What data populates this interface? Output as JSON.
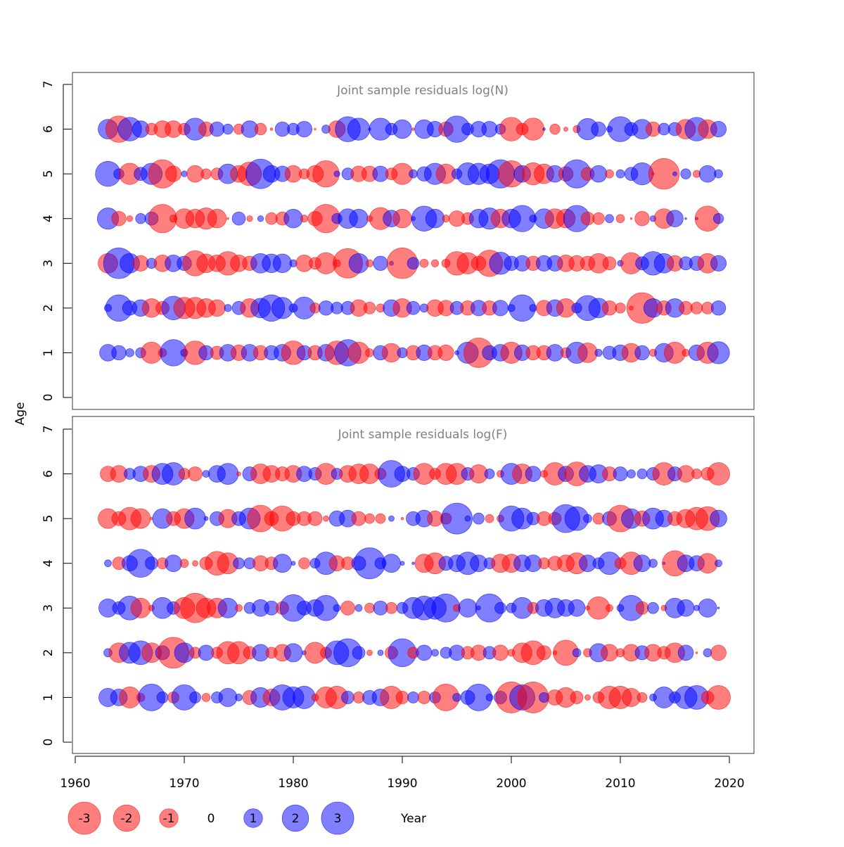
{
  "chart_data": [
    {
      "type": "scatter",
      "subtype": "bubble",
      "title": "Joint sample residuals log(N)",
      "xlabel": "Year",
      "ylabel": "Age",
      "xlim": [
        1960,
        2020
      ],
      "ylim": [
        0,
        7
      ],
      "x_ticks": [
        "1960",
        "1970",
        "1980",
        "1990",
        "2000",
        "2010",
        "2020"
      ],
      "y_ticks": [
        "0",
        "1",
        "2",
        "3",
        "4",
        "5",
        "6",
        "7"
      ],
      "years": [
        1963,
        2019
      ],
      "ages": [
        1,
        2,
        3,
        4,
        5,
        6
      ],
      "residuals": {
        "6": [
          1.1,
          -2,
          1.6,
          0.8,
          -0.4,
          -0.8,
          -0.8,
          -0.4,
          1.4,
          -0.6,
          0.6,
          0.3,
          -0.3,
          0.8,
          -0.4,
          -0.02,
          0.6,
          0.4,
          0.7,
          -0.01,
          0.2,
          -0.8,
          1.8,
          1.4,
          0.02,
          1.4,
          0.4,
          1,
          -0.02,
          1,
          0.7,
          -0.6,
          2,
          0.4,
          0.7,
          0.7,
          0.3,
          -1.6,
          -0.4,
          -1.4,
          0.02,
          -0.3,
          -0.05,
          -0.15,
          1.3,
          0.6,
          0.1,
          1.8,
          0.5,
          1.1,
          -0.6,
          0.4,
          0.5,
          -1.1,
          1.6,
          -1,
          0.7
        ],
        "5": [
          1.8,
          0.3,
          -1.3,
          0.5,
          1.3,
          -2.3,
          -0.7,
          0.1,
          -0.8,
          -0.3,
          -0.4,
          1.1,
          -0.8,
          -1.6,
          2.5,
          0.8,
          0.7,
          -0.8,
          -0.3,
          -0.8,
          -2,
          0.1,
          0.4,
          -0.7,
          -0.7,
          0.7,
          -0.4,
          -1.3,
          0.2,
          0.6,
          1.3,
          -1.1,
          0.3,
          1.4,
          1.3,
          1.1,
          2.3,
          -2,
          0.8,
          -1.4,
          -1.1,
          0.8,
          -0.6,
          2.3,
          -0.5,
          0.8,
          -0.2,
          0.2,
          0.5,
          1.4,
          -0.02,
          -2.7,
          0.05,
          0.3,
          -0.15,
          0.8,
          0.2
        ],
        "4": [
          1.3,
          -0.6,
          -0.1,
          0.3,
          0.5,
          -2.3,
          -0.15,
          -1.1,
          -1,
          -1.3,
          -1,
          -0.01,
          0.5,
          -0.1,
          0.1,
          -0.4,
          -0.5,
          1,
          -0.15,
          -0.6,
          -2.3,
          0.3,
          1.1,
          1,
          -0.1,
          -1.4,
          0.8,
          -1,
          0.05,
          1.8,
          1,
          -0.15,
          -0.7,
          -0.4,
          1,
          1.3,
          -1,
          1,
          2,
          0.15,
          1.1,
          -1.1,
          -1,
          2,
          -0.5,
          -0.4,
          0.2,
          -0.2,
          -0.01,
          -0.6,
          0.1,
          -1.1,
          0.8,
          0.01,
          0.02,
          -1.8,
          0.3
        ],
        "3": [
          -1.1,
          2.7,
          1.1,
          -0.7,
          0.3,
          -0.8,
          0.8,
          0.6,
          -1.8,
          -1,
          -0.8,
          -1.6,
          -0.8,
          -0.6,
          1.1,
          1,
          1,
          0.15,
          -0.8,
          -0.4,
          -1.3,
          -0.15,
          -2.5,
          1.1,
          -0.15,
          0.6,
          0.05,
          -2.7,
          0.4,
          -0.2,
          -0.15,
          -0.2,
          -1.6,
          -1.3,
          -0.6,
          -2,
          1.4,
          0.6,
          0.7,
          -0.6,
          0.7,
          0.7,
          -0.8,
          -0.7,
          -0.6,
          -1.1,
          -0.5,
          0.1,
          -1.3,
          0.5,
          1.6,
          1.1,
          -0.7,
          0.5,
          0.6,
          -1.1,
          0.7
        ],
        "2": [
          0.15,
          2,
          0.6,
          0.8,
          -1,
          -0.5,
          1.6,
          -1.3,
          -1.3,
          -1,
          -0.8,
          0.15,
          0.5,
          -1,
          1.1,
          2,
          1.3,
          0.2,
          1.4,
          -0.3,
          0.6,
          0.4,
          0.5,
          -0.8,
          -0.4,
          -0.2,
          0.8,
          -1,
          0.5,
          0.2,
          -0.8,
          -0.7,
          0.5,
          -0.6,
          0.7,
          -0.6,
          0.7,
          0.15,
          2,
          0.15,
          -0.7,
          0.8,
          -1,
          0.3,
          1.8,
          1.1,
          -0.6,
          -0.3,
          -0.05,
          -2.7,
          1,
          -0.6,
          1,
          -0.5,
          -0.4,
          -0.4,
          0.6
        ],
        "1": [
          0.8,
          0.6,
          0.2,
          0.3,
          -1.3,
          -0.2,
          2,
          0.15,
          -1.6,
          0.6,
          -0.5,
          0.8,
          -0.7,
          0.8,
          -0.6,
          0.6,
          0.8,
          -1.6,
          0.6,
          -0.6,
          0.8,
          -1.6,
          2,
          -1.3,
          -0.2,
          0.6,
          -1,
          0.3,
          -0.6,
          0.7,
          -0.6,
          -0.7,
          0.05,
          1.3,
          -2.5,
          0.6,
          0.8,
          -1.3,
          0.7,
          -0.6,
          -0.6,
          0.8,
          -0.3,
          1.3,
          -1.1,
          0.15,
          0.5,
          0.7,
          -1,
          0.6,
          -0.15,
          1,
          -1.3,
          -0.15,
          0.7,
          -1.3,
          1.4
        ]
      }
    },
    {
      "type": "scatter",
      "subtype": "bubble",
      "title": "Joint sample residuals log(F)",
      "xlabel": "Year",
      "ylabel": "Age",
      "xlim": [
        1960,
        2020
      ],
      "ylim": [
        0,
        7
      ],
      "x_ticks": [
        "1960",
        "1970",
        "1980",
        "1990",
        "2000",
        "2010",
        "2020"
      ],
      "y_ticks": [
        "0",
        "1",
        "2",
        "3",
        "4",
        "5",
        "6",
        "7"
      ],
      "years": [
        1963,
        2019
      ],
      "ages": [
        1,
        2,
        3,
        4,
        5,
        6
      ],
      "residuals": {
        "6": [
          -0.68,
          -0.81,
          0.36,
          0.68,
          -0.81,
          1.27,
          1.45,
          -0.36,
          -0.57,
          0.14,
          0.81,
          1.27,
          -0.05,
          0.57,
          -1.11,
          -0.81,
          -0.57,
          -0.81,
          0.68,
          0.46,
          -1.27,
          0.36,
          -0.81,
          -1.11,
          -1.11,
          -0.36,
          2.04,
          0.68,
          0.46,
          -1.27,
          -0.36,
          -1.27,
          -1.27,
          0.46,
          -0.96,
          0.28,
          -0.14,
          1.27,
          -1.11,
          0.68,
          -0.14,
          -1.45,
          0.68,
          -1.63,
          0.81,
          0.96,
          -0.57,
          0.57,
          0.2,
          0.28,
          0.46,
          -1.45,
          0.57,
          -0.81,
          -0.28,
          -0.46,
          -1.45
        ],
        "5": [
          -1.11,
          -0.57,
          -1.45,
          -1.11,
          -0.02,
          1.11,
          -0.57,
          -1.11,
          1.27,
          0.05,
          0.57,
          -0.96,
          0.57,
          1.27,
          -2.04,
          -0.57,
          -1.83,
          -0.57,
          -0.57,
          -0.57,
          -0.09,
          0.68,
          0.81,
          -0.57,
          -0.28,
          -0.28,
          0.09,
          -0.02,
          0.57,
          0.81,
          -0.68,
          -0.36,
          2.74,
          0.09,
          0.36,
          -0.2,
          -0.14,
          1.83,
          1.27,
          0.46,
          -0.57,
          -0.46,
          2.26,
          1.63,
          0.2,
          -0.36,
          0.57,
          -2.04,
          1.11,
          -0.68,
          1.27,
          0.81,
          -0.57,
          -0.96,
          -1.45,
          -1.63,
          0.81
        ],
        "4": [
          0.14,
          -0.46,
          0.68,
          2.26,
          0.46,
          -0.36,
          0.81,
          -0.2,
          -0.09,
          -0.46,
          -1.63,
          -1.27,
          0.36,
          0.36,
          -0.68,
          -0.46,
          0.96,
          0.05,
          -0.36,
          0.28,
          1.45,
          -0.68,
          -0.46,
          0.57,
          2.74,
          0.36,
          0.96,
          0.05,
          0.02,
          -0.96,
          -1.27,
          0.57,
          0.81,
          1.45,
          0.81,
          0.36,
          -0.96,
          -0.96,
          0.81,
          0.81,
          -0.36,
          -0.57,
          -0.81,
          -1.27,
          0.81,
          0.36,
          1.45,
          -0.36,
          -1.45,
          0.81,
          0.2,
          0.02,
          -1.83,
          0.81,
          0.68,
          -1.11,
          0.14
        ],
        "3": [
          0.96,
          0.46,
          1.63,
          -1.11,
          -0.09,
          1.27,
          0.46,
          -1.27,
          -2.49,
          -1.11,
          -1.11,
          1.11,
          -0.14,
          0.36,
          0.81,
          0.57,
          -0.46,
          2.04,
          0.57,
          0.81,
          1.83,
          0.14,
          -0.57,
          0.14,
          -0.28,
          0.57,
          -0.36,
          0.36,
          1.27,
          1.63,
          1.45,
          2.26,
          -0.14,
          0.96,
          0.05,
          2.26,
          0.36,
          0.28,
          1.27,
          -0.36,
          0.81,
          1.11,
          0.81,
          0.81,
          -0.05,
          -1.45,
          -0.14,
          0.14,
          1.83,
          -0.46,
          0.36,
          -0.09,
          1.11,
          0.81,
          0.09,
          0.96,
          0.01
        ],
        "2": [
          0.2,
          -1.11,
          1.27,
          1.63,
          -1.11,
          0.57,
          -2.74,
          1.11,
          -0.36,
          0.68,
          -0.36,
          -1.45,
          -1.45,
          -0.46,
          0.81,
          -0.36,
          -0.81,
          0.96,
          0.05,
          -1.27,
          -0.36,
          1.63,
          2.26,
          0.46,
          -0.09,
          0.09,
          -0.46,
          2.26,
          -0.36,
          0.68,
          0.14,
          0.36,
          0.68,
          -0.46,
          -0.68,
          0.46,
          -0.68,
          -0.14,
          -1.11,
          -1.63,
          -0.57,
          -0.05,
          -1.83,
          0.2,
          -0.2,
          0.96,
          -0.81,
          -0.2,
          -0.81,
          0.57,
          -0.81,
          -0.46,
          -1.11,
          0.68,
          -0.01,
          0.2,
          -0.68
        ],
        "1": [
          0.96,
          0.81,
          -1.27,
          -0.2,
          2.04,
          0.36,
          -0.36,
          1.83,
          0.36,
          -0.2,
          0.36,
          0.96,
          0.14,
          -0.57,
          1.11,
          -0.81,
          1.83,
          1.27,
          1.45,
          -0.14,
          -1.27,
          -1.45,
          0.46,
          -0.36,
          0.57,
          0.81,
          -1.45,
          -0.46,
          0.36,
          -0.46,
          0.36,
          -2.04,
          0.2,
          0.57,
          2.04,
          0.14,
          0.46,
          -2.74,
          1.83,
          -2.74,
          0.28,
          -0.68,
          -1.11,
          -0.46,
          -0.09,
          -0.36,
          -1.45,
          -1.45,
          -0.96,
          -0.28,
          0.14,
          1.27,
          0.36,
          1.45,
          1.63,
          -0.46,
          -1.63
        ]
      }
    }
  ],
  "legend": {
    "items": [
      {
        "label": "-3",
        "value": -3
      },
      {
        "label": "-2",
        "value": -2
      },
      {
        "label": "-1",
        "value": -1
      },
      {
        "label": "0",
        "value": 0
      },
      {
        "label": "1",
        "value": 1
      },
      {
        "label": "2",
        "value": 2
      },
      {
        "label": "3",
        "value": 3
      }
    ],
    "xlabel": "Year"
  },
  "ylabel": "Age",
  "colors": {
    "positive": "#0000ff",
    "negative": "#ff0000",
    "title": "#808080"
  }
}
